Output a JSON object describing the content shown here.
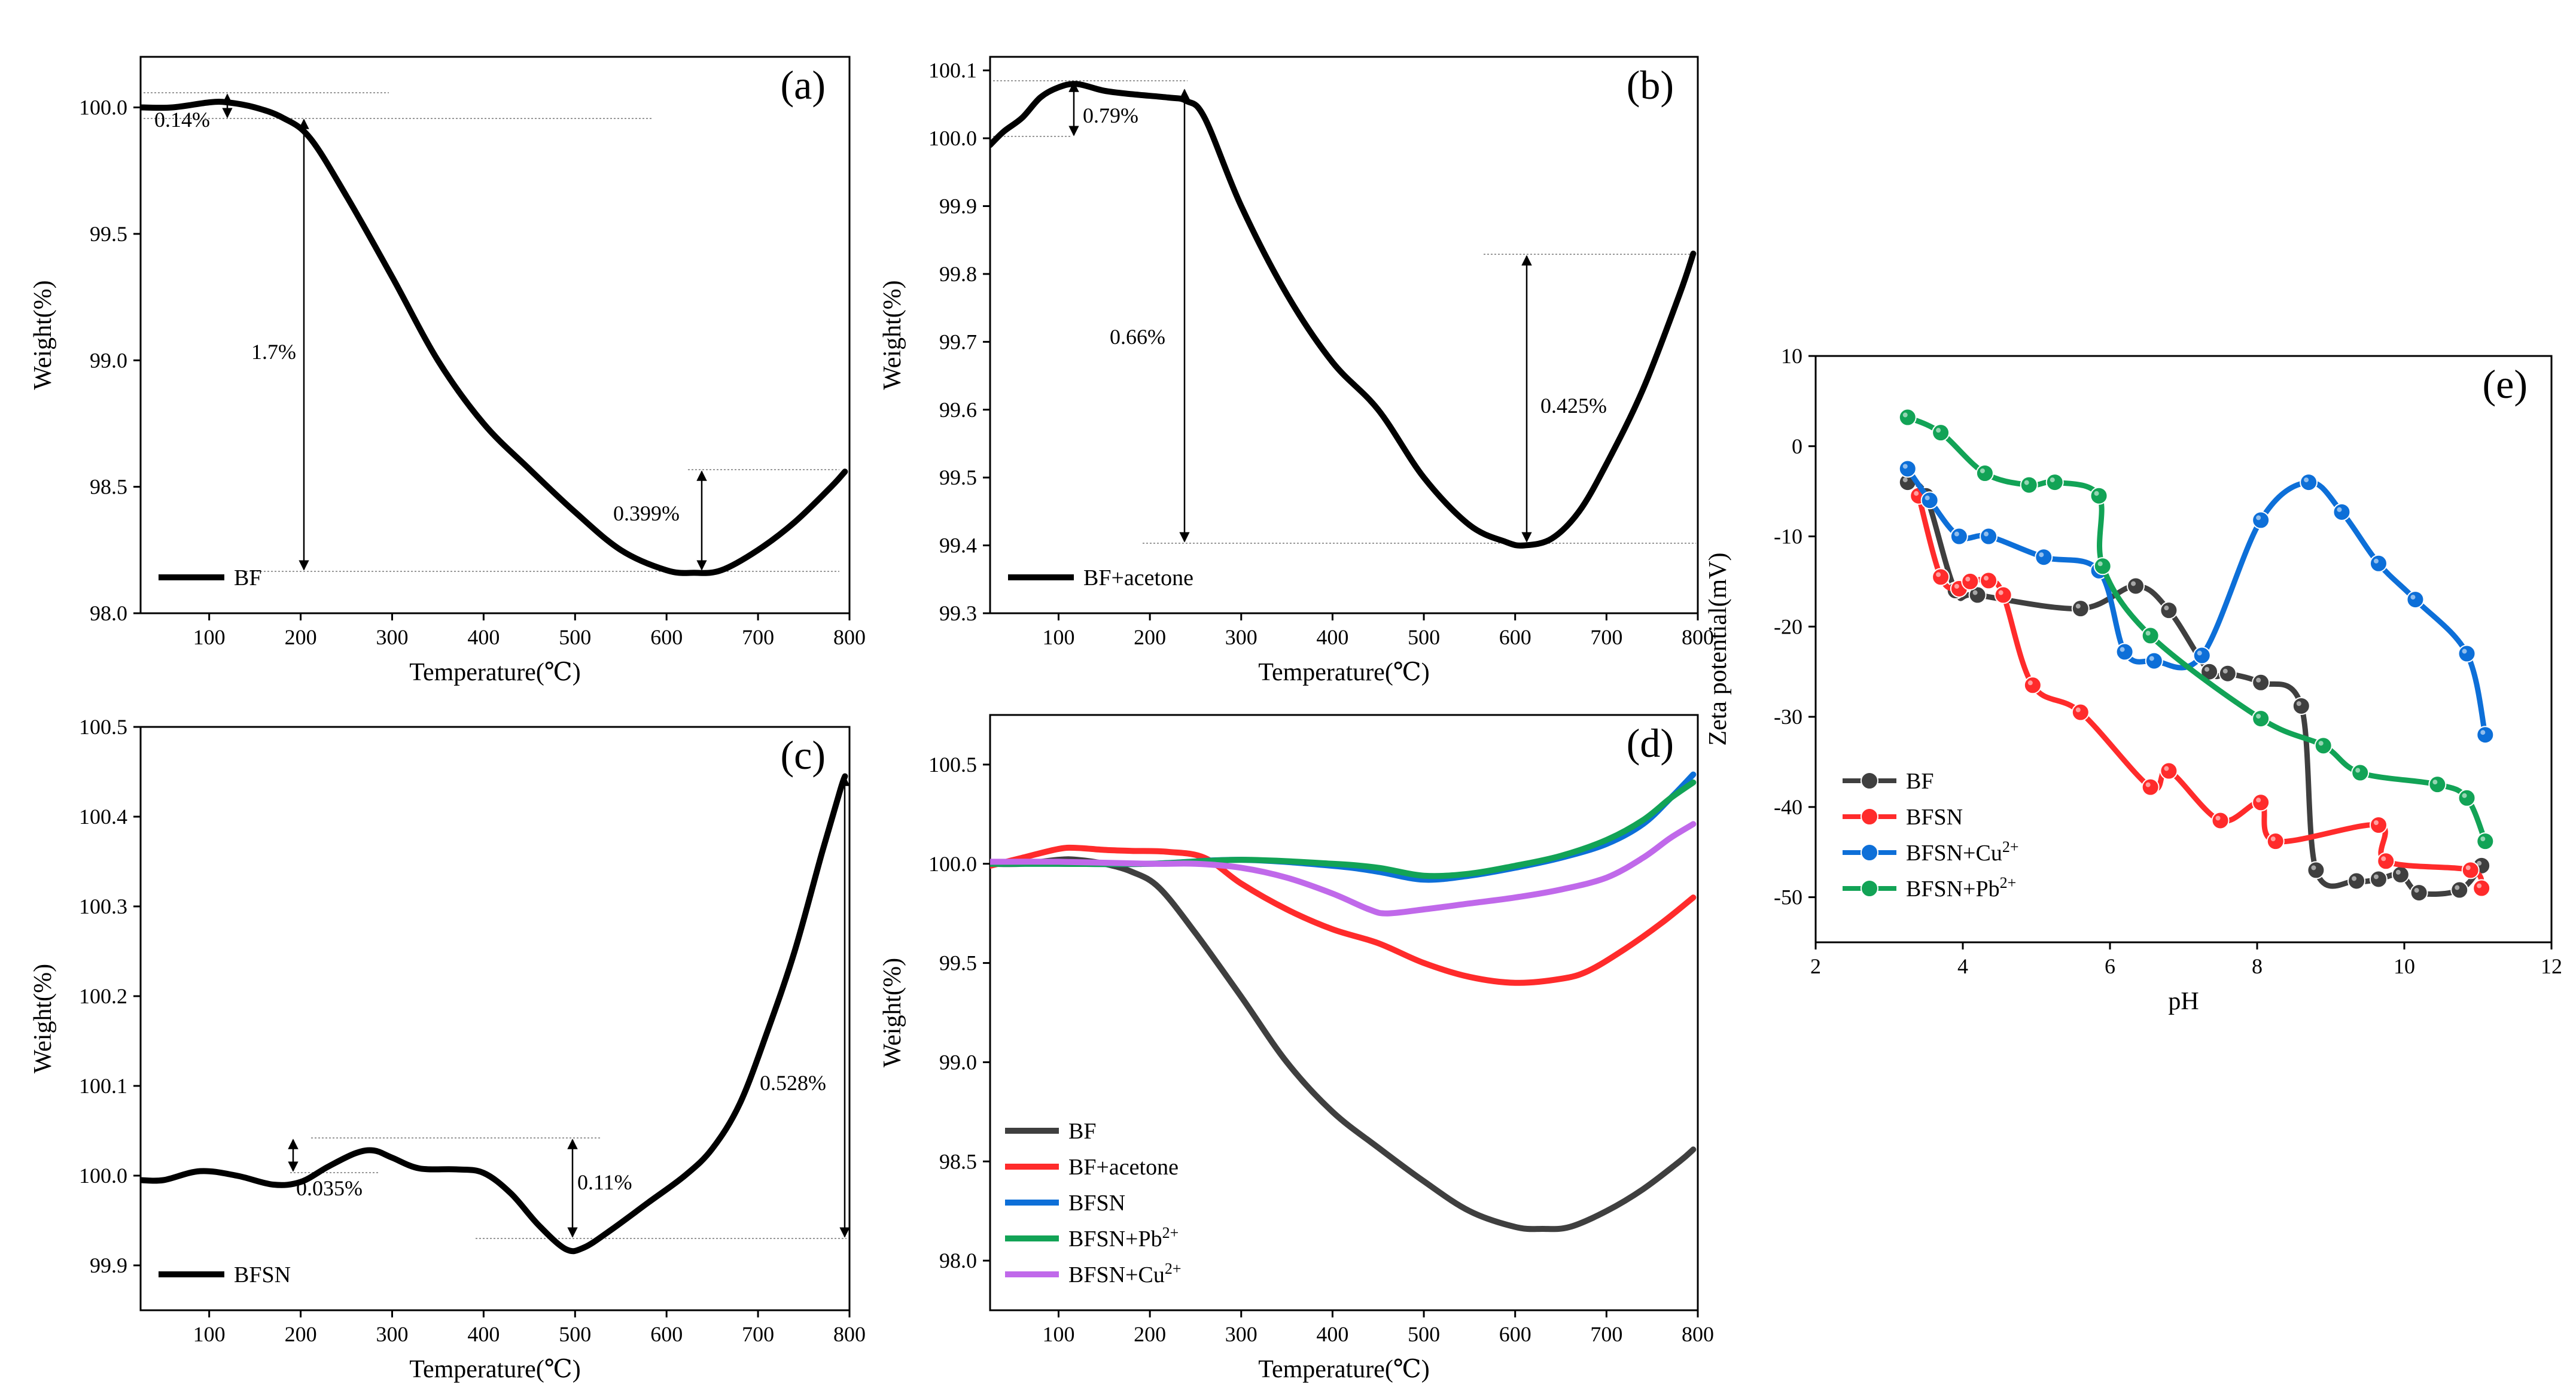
{
  "chart_data": [
    {
      "id": "a",
      "type": "line",
      "panel_label": "(a)",
      "xlabel": "Temperature(℃)",
      "ylabel": "Weight(%)",
      "xlim": [
        25,
        800
      ],
      "ylim": [
        98.0,
        100.2
      ],
      "xticks": [
        100,
        200,
        300,
        400,
        500,
        600,
        700,
        800
      ],
      "yticks": [
        98.0,
        98.5,
        99.0,
        99.5,
        100.0
      ],
      "ytick_labels": [
        "98.0",
        "98.5",
        "99.0",
        "99.5",
        "100.0"
      ],
      "legend_position": "bottom-left",
      "series": [
        {
          "name": "BF",
          "color": "#000000",
          "x": [
            25,
            60,
            100,
            120,
            150,
            180,
            210,
            250,
            300,
            350,
            400,
            450,
            500,
            550,
            600,
            630,
            660,
            700,
            740,
            780,
            795
          ],
          "y": [
            100.0,
            100.0,
            100.02,
            100.02,
            100.0,
            99.96,
            99.88,
            99.65,
            99.33,
            99.0,
            98.75,
            98.57,
            98.4,
            98.25,
            98.17,
            98.16,
            98.17,
            98.25,
            98.36,
            98.5,
            98.56
          ]
        }
      ],
      "annotations": [
        {
          "text": "0.14%",
          "x": 25,
          "y": 99.9
        },
        {
          "text": "1.7%",
          "x": 165,
          "y": 99.0
        },
        {
          "text": "0.399%",
          "x": 500,
          "y": 98.37
        }
      ]
    },
    {
      "id": "b",
      "type": "line",
      "panel_label": "(b)",
      "xlabel": "Temperature(℃)",
      "ylabel": "Weight(%)",
      "xlim": [
        25,
        800
      ],
      "ylim": [
        99.3,
        100.12
      ],
      "xticks": [
        100,
        200,
        300,
        400,
        500,
        600,
        700,
        800
      ],
      "yticks": [
        99.3,
        99.4,
        99.5,
        99.6,
        99.7,
        99.8,
        99.9,
        100.0,
        100.1
      ],
      "ytick_labels": [
        "99.3",
        "99.4",
        "99.5",
        "99.6",
        "99.7",
        "99.8",
        "99.9",
        "100.0",
        "100.1"
      ],
      "legend_position": "bottom-left",
      "series": [
        {
          "name": "BF+acetone",
          "color": "#000000",
          "x": [
            25,
            40,
            60,
            80,
            100,
            120,
            150,
            180,
            220,
            240,
            260,
            300,
            350,
            400,
            450,
            500,
            550,
            590,
            610,
            640,
            670,
            700,
            740,
            780,
            795
          ],
          "y": [
            99.99,
            100.01,
            100.03,
            100.06,
            100.075,
            100.08,
            100.07,
            100.065,
            100.06,
            100.055,
            100.03,
            99.9,
            99.77,
            99.67,
            99.6,
            99.5,
            99.43,
            99.405,
            99.4,
            99.41,
            99.45,
            99.52,
            99.63,
            99.77,
            99.83
          ]
        }
      ],
      "annotations": [
        {
          "text": "0.79%",
          "x": 110,
          "y": 100.035
        },
        {
          "text": "0.66%",
          "x": 140,
          "y": 99.72
        },
        {
          "text": "0.425%",
          "x": 625,
          "y": 99.6
        }
      ]
    },
    {
      "id": "c",
      "type": "line",
      "panel_label": "(c)",
      "xlabel": "Temperature(℃)",
      "ylabel": "Weight(%)",
      "xlim": [
        25,
        800
      ],
      "ylim": [
        99.85,
        100.5
      ],
      "xticks": [
        100,
        200,
        300,
        400,
        500,
        600,
        700,
        800
      ],
      "yticks": [
        99.9,
        100.0,
        100.1,
        100.2,
        100.3,
        100.4,
        100.5
      ],
      "ytick_labels": [
        "99.9",
        "100.0",
        "100.1",
        "100.2",
        "100.3",
        "100.4",
        "100.5"
      ],
      "legend_position": "bottom-left",
      "series": [
        {
          "name": "BFSN",
          "color": "#000000",
          "x": [
            25,
            50,
            90,
            130,
            170,
            200,
            230,
            260,
            280,
            300,
            330,
            370,
            400,
            430,
            460,
            490,
            510,
            540,
            580,
            620,
            650,
            680,
            710,
            740,
            770,
            790,
            795
          ],
          "y": [
            99.995,
            99.995,
            100.005,
            100.0,
            99.99,
            99.993,
            100.01,
            100.025,
            100.028,
            100.02,
            100.008,
            100.007,
            100.003,
            99.98,
            99.945,
            99.918,
            99.92,
            99.94,
            99.97,
            100.0,
            100.03,
            100.08,
            100.16,
            100.25,
            100.36,
            100.43,
            100.445
          ]
        }
      ],
      "annotations": [
        {
          "text": "0.035%",
          "x": 205,
          "y": 99.975
        },
        {
          "text": "0.11%",
          "x": 505,
          "y": 99.96
        },
        {
          "text": "0.528%",
          "x": 700,
          "y": 100.13
        }
      ]
    },
    {
      "id": "d",
      "type": "line",
      "panel_label": "(d)",
      "xlabel": "Temperature(℃)",
      "ylabel": "Weight(%)",
      "xlim": [
        25,
        800
      ],
      "ylim": [
        97.75,
        100.75
      ],
      "xticks": [
        100,
        200,
        300,
        400,
        500,
        600,
        700,
        800
      ],
      "yticks": [
        98.0,
        98.5,
        99.0,
        99.5,
        100.0,
        100.5
      ],
      "ytick_labels": [
        "98.0",
        "98.5",
        "99.0",
        "99.5",
        "100.0",
        "100.5"
      ],
      "legend_position": "bottom-left",
      "series": [
        {
          "name": "BF",
          "color": "#3f3f3f",
          "x": [
            25,
            60,
            100,
            120,
            150,
            180,
            210,
            250,
            300,
            350,
            400,
            450,
            500,
            550,
            600,
            630,
            660,
            700,
            740,
            780,
            795
          ],
          "y": [
            100.0,
            100.0,
            100.02,
            100.02,
            100.0,
            99.96,
            99.88,
            99.65,
            99.33,
            99.0,
            98.75,
            98.57,
            98.4,
            98.25,
            98.17,
            98.16,
            98.17,
            98.25,
            98.36,
            98.5,
            98.56
          ]
        },
        {
          "name": "BF+acetone",
          "color": "#ff2b2b",
          "x": [
            25,
            60,
            100,
            120,
            150,
            180,
            220,
            260,
            300,
            350,
            400,
            450,
            500,
            550,
            600,
            650,
            680,
            720,
            760,
            795
          ],
          "y": [
            99.99,
            100.03,
            100.075,
            100.08,
            100.07,
            100.065,
            100.06,
            100.03,
            99.9,
            99.77,
            99.67,
            99.6,
            99.5,
            99.43,
            99.4,
            99.42,
            99.46,
            99.57,
            99.7,
            99.83
          ]
        },
        {
          "name": "BFSN",
          "color": "#0d6fd8",
          "x": [
            25,
            100,
            200,
            300,
            400,
            450,
            500,
            550,
            600,
            650,
            700,
            740,
            770,
            795
          ],
          "y": [
            100.0,
            100.0,
            100.0,
            100.02,
            99.99,
            99.96,
            99.92,
            99.94,
            99.98,
            100.03,
            100.1,
            100.2,
            100.33,
            100.45
          ]
        },
        {
          "name": "BFSN+Pb2+",
          "color": "#12a356",
          "x": [
            25,
            100,
            200,
            300,
            400,
            450,
            500,
            550,
            600,
            650,
            700,
            740,
            770,
            795
          ],
          "y": [
            100.0,
            100.0,
            100.0,
            100.02,
            100.0,
            99.98,
            99.94,
            99.95,
            99.99,
            100.04,
            100.12,
            100.22,
            100.33,
            100.41
          ]
        },
        {
          "name": "BFSN+Cu2+",
          "color": "#c069ea",
          "x": [
            25,
            100,
            200,
            250,
            300,
            350,
            400,
            440,
            460,
            500,
            550,
            600,
            650,
            700,
            740,
            770,
            795
          ],
          "y": [
            100.01,
            100.01,
            100.0,
            100.0,
            99.98,
            99.93,
            99.85,
            99.77,
            99.75,
            99.77,
            99.8,
            99.83,
            99.87,
            99.93,
            100.03,
            100.13,
            100.2
          ]
        }
      ]
    },
    {
      "id": "e",
      "type": "line",
      "panel_label": "(e)",
      "xlabel": "pH",
      "ylabel": "Zeta potential(mV)",
      "xlim": [
        2,
        12
      ],
      "ylim": [
        -55,
        10
      ],
      "xticks": [
        2,
        4,
        6,
        8,
        10,
        12
      ],
      "yticks": [
        -50,
        -40,
        -30,
        -20,
        -10,
        0,
        10
      ],
      "ytick_labels": [
        "-50",
        "-40",
        "-30",
        "-20",
        "-10",
        "0",
        "10"
      ],
      "legend_position": "bottom-left",
      "series": [
        {
          "name": "BF",
          "color": "#3f3f3f",
          "x": [
            3.25,
            3.5,
            3.9,
            4.2,
            5.6,
            6.35,
            6.8,
            7.35,
            7.6,
            8.05,
            8.6,
            8.8,
            9.35,
            9.65,
            9.95,
            10.2,
            10.75,
            11.05
          ],
          "y": [
            -4,
            -5.5,
            -16,
            -16.5,
            -18,
            -15.5,
            -18.2,
            -25,
            -25.2,
            -26.2,
            -28.8,
            -47,
            -48.2,
            -48,
            -47.5,
            -49.5,
            -49.2,
            -46.5
          ]
        },
        {
          "name": "BFSN",
          "color": "#ff2b2b",
          "x": [
            3.4,
            3.7,
            3.95,
            4.1,
            4.35,
            4.55,
            4.95,
            5.6,
            6.55,
            6.8,
            7.5,
            8.05,
            8.25,
            9.65,
            9.75,
            10.9,
            11.05
          ],
          "y": [
            -5.5,
            -14.5,
            -15.8,
            -15,
            -14.9,
            -16.5,
            -26.5,
            -29.5,
            -37.8,
            -36,
            -41.5,
            -39.5,
            -43.8,
            -42,
            -46,
            -47,
            -49
          ]
        },
        {
          "name": "BFSN+Cu2+",
          "color": "#0d6fd8",
          "x": [
            3.25,
            3.55,
            3.95,
            4.35,
            5.1,
            5.85,
            6.2,
            6.6,
            7.25,
            8.05,
            8.7,
            9.15,
            9.65,
            10.15,
            10.85,
            11.1
          ],
          "y": [
            -2.5,
            -6,
            -10,
            -10,
            -12.3,
            -13.8,
            -22.8,
            -23.8,
            -23.2,
            -8.2,
            -4,
            -7.3,
            -13,
            -17,
            -23,
            -32
          ]
        },
        {
          "name": "BFSN+Pb2+",
          "color": "#12a356",
          "x": [
            3.25,
            3.7,
            4.3,
            4.9,
            5.25,
            5.85,
            5.9,
            6.55,
            8.05,
            8.9,
            9.4,
            10.45,
            10.85,
            11.1
          ],
          "y": [
            3.2,
            1.5,
            -3,
            -4.3,
            -4,
            -5.5,
            -13.3,
            -21,
            -30.2,
            -33.2,
            -36.2,
            -37.5,
            -39,
            -43.8
          ]
        }
      ]
    }
  ]
}
